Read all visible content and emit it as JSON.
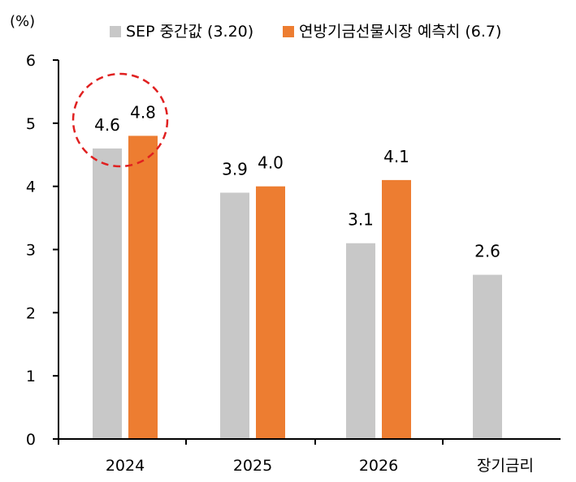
{
  "chart_data": {
    "type": "bar",
    "unit_label": "(%)",
    "categories": [
      "2024",
      "2025",
      "2026",
      "장기금리"
    ],
    "series": [
      {
        "name": "SEP 중간값 (3.20)",
        "color": "#c8c8c8",
        "values": [
          4.6,
          3.9,
          3.1,
          2.6
        ]
      },
      {
        "name": "연방기금선물시장 예측치 (6.7)",
        "color": "#ed7d31",
        "values": [
          4.8,
          4.0,
          4.1,
          null
        ]
      }
    ],
    "ylim": [
      0,
      6
    ],
    "yticks": [
      "0",
      "1",
      "2",
      "3",
      "4",
      "5",
      "6"
    ],
    "legend_position": "top",
    "grid": false,
    "highlight": {
      "category": "2024",
      "style": "dashed-circle",
      "color": "#e02020"
    }
  }
}
